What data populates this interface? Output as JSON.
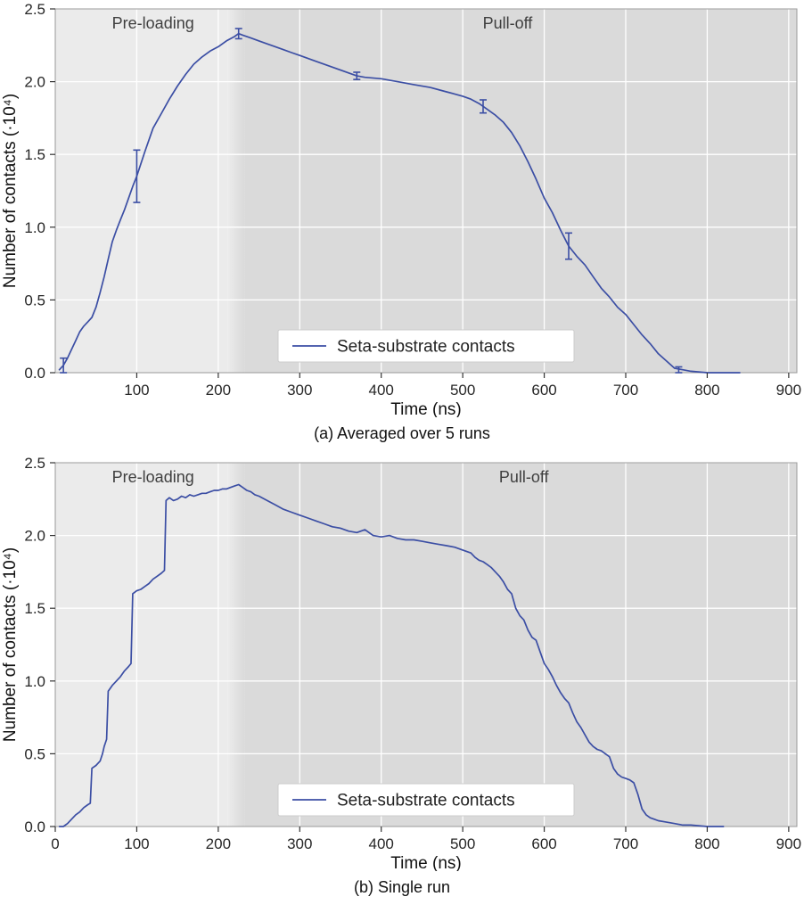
{
  "figure": {
    "line_color": "#3b4ea4",
    "preload_color": "#ebebeb",
    "pulloff_color": "#dadada",
    "grid_color": "#ffffff",
    "border_color": "#9a9a9a",
    "tick_color": "#333333",
    "legend_border": "#cccccc",
    "legend_bg": "#ffffff"
  },
  "chart_data": [
    {
      "type": "line",
      "caption": "(a) Averaged over 5 runs",
      "xlabel": "Time (ns)",
      "ylabel": "Number of contacts (·10⁴)",
      "xlim": [
        0,
        910
      ],
      "ylim": [
        0,
        2.5
      ],
      "xticks": [
        100,
        200,
        300,
        400,
        500,
        600,
        700,
        800,
        900
      ],
      "yticks": [
        0.0,
        0.5,
        1.0,
        1.5,
        2.0,
        2.5
      ],
      "grid": true,
      "legend_position": "lower center",
      "legend": [
        "Seta-substrate contacts"
      ],
      "regions": [
        {
          "label": "Pre-loading",
          "from": 0,
          "to": 222,
          "label_x": 120,
          "color": "#ebebeb"
        },
        {
          "label": "Pull-off",
          "from": 222,
          "to": 910,
          "label_x": 555,
          "color": "#dadada"
        }
      ],
      "series": [
        {
          "name": "Seta-substrate contacts",
          "x": [
            5,
            10,
            15,
            20,
            25,
            30,
            35,
            40,
            45,
            50,
            55,
            60,
            65,
            70,
            75,
            80,
            85,
            90,
            95,
            100,
            110,
            120,
            130,
            140,
            150,
            160,
            170,
            180,
            190,
            200,
            210,
            220,
            225,
            230,
            240,
            250,
            260,
            270,
            280,
            290,
            300,
            320,
            340,
            360,
            370,
            380,
            400,
            420,
            440,
            460,
            480,
            500,
            510,
            520,
            525,
            530,
            540,
            550,
            560,
            570,
            580,
            590,
            600,
            610,
            620,
            630,
            640,
            650,
            660,
            670,
            680,
            690,
            700,
            710,
            720,
            730,
            740,
            750,
            760,
            770,
            780,
            800,
            820,
            840
          ],
          "y": [
            0.02,
            0.05,
            0.1,
            0.16,
            0.22,
            0.28,
            0.32,
            0.35,
            0.38,
            0.45,
            0.55,
            0.66,
            0.78,
            0.9,
            0.98,
            1.05,
            1.12,
            1.2,
            1.28,
            1.35,
            1.52,
            1.68,
            1.78,
            1.88,
            1.97,
            2.05,
            2.12,
            2.17,
            2.21,
            2.24,
            2.28,
            2.31,
            2.33,
            2.32,
            2.3,
            2.28,
            2.26,
            2.24,
            2.22,
            2.2,
            2.18,
            2.14,
            2.1,
            2.06,
            2.04,
            2.03,
            2.02,
            2.0,
            1.98,
            1.96,
            1.93,
            1.9,
            1.88,
            1.85,
            1.83,
            1.81,
            1.77,
            1.72,
            1.65,
            1.56,
            1.45,
            1.33,
            1.2,
            1.1,
            0.98,
            0.87,
            0.8,
            0.74,
            0.66,
            0.58,
            0.52,
            0.45,
            0.4,
            0.33,
            0.26,
            0.2,
            0.13,
            0.08,
            0.03,
            0.02,
            0.01,
            0.0,
            0.0,
            0.0
          ]
        }
      ],
      "error_bars": [
        {
          "x": 10,
          "y": 0.05,
          "err": 0.05
        },
        {
          "x": 100,
          "y": 1.35,
          "err": 0.18
        },
        {
          "x": 225,
          "y": 2.33,
          "err": 0.035
        },
        {
          "x": 370,
          "y": 2.04,
          "err": 0.025
        },
        {
          "x": 525,
          "y": 1.83,
          "err": 0.045
        },
        {
          "x": 630,
          "y": 0.87,
          "err": 0.09
        },
        {
          "x": 765,
          "y": 0.02,
          "err": 0.02
        }
      ]
    },
    {
      "type": "line",
      "caption": "(b) Single run",
      "xlabel": "Time (ns)",
      "ylabel": "Number of contacts (·10⁴)",
      "xlim": [
        0,
        910
      ],
      "ylim": [
        0,
        2.5
      ],
      "xticks": [
        0,
        100,
        200,
        300,
        400,
        500,
        600,
        700,
        800,
        900
      ],
      "yticks": [
        0.0,
        0.5,
        1.0,
        1.5,
        2.0,
        2.5
      ],
      "grid": true,
      "legend_position": "lower center",
      "legend": [
        "Seta-substrate contacts"
      ],
      "regions": [
        {
          "label": "Pre-loading",
          "from": 0,
          "to": 222,
          "label_x": 120,
          "color": "#ebebeb"
        },
        {
          "label": "Pull-off",
          "from": 222,
          "to": 910,
          "label_x": 575,
          "color": "#dadada"
        }
      ],
      "series": [
        {
          "name": "Seta-substrate contacts",
          "x": [
            5,
            10,
            15,
            20,
            25,
            30,
            35,
            40,
            43,
            45,
            50,
            55,
            58,
            60,
            63,
            65,
            70,
            75,
            80,
            85,
            90,
            93,
            95,
            100,
            105,
            110,
            115,
            120,
            125,
            130,
            134,
            136,
            140,
            145,
            150,
            155,
            160,
            165,
            170,
            175,
            180,
            185,
            190,
            195,
            200,
            205,
            210,
            215,
            220,
            225,
            230,
            235,
            240,
            245,
            250,
            260,
            270,
            280,
            290,
            300,
            310,
            320,
            330,
            340,
            350,
            360,
            370,
            380,
            390,
            400,
            410,
            420,
            430,
            440,
            450,
            460,
            470,
            480,
            490,
            500,
            510,
            515,
            520,
            525,
            530,
            535,
            540,
            545,
            550,
            555,
            560,
            565,
            570,
            575,
            580,
            585,
            590,
            595,
            600,
            605,
            610,
            615,
            620,
            625,
            630,
            635,
            640,
            645,
            650,
            655,
            660,
            665,
            670,
            675,
            680,
            685,
            690,
            695,
            700,
            705,
            710,
            715,
            720,
            725,
            730,
            735,
            740,
            750,
            760,
            770,
            780,
            800,
            820
          ],
          "y": [
            0.0,
            0.0,
            0.02,
            0.05,
            0.08,
            0.1,
            0.13,
            0.15,
            0.16,
            0.4,
            0.42,
            0.45,
            0.5,
            0.55,
            0.6,
            0.93,
            0.97,
            1.0,
            1.03,
            1.07,
            1.1,
            1.12,
            1.6,
            1.62,
            1.63,
            1.65,
            1.67,
            1.7,
            1.72,
            1.74,
            1.76,
            2.24,
            2.26,
            2.24,
            2.25,
            2.27,
            2.26,
            2.28,
            2.27,
            2.28,
            2.29,
            2.29,
            2.3,
            2.31,
            2.31,
            2.32,
            2.32,
            2.33,
            2.34,
            2.35,
            2.33,
            2.31,
            2.3,
            2.28,
            2.27,
            2.24,
            2.21,
            2.18,
            2.16,
            2.14,
            2.12,
            2.1,
            2.08,
            2.06,
            2.05,
            2.03,
            2.02,
            2.04,
            2.0,
            1.99,
            2.0,
            1.98,
            1.97,
            1.97,
            1.96,
            1.95,
            1.94,
            1.93,
            1.92,
            1.9,
            1.88,
            1.85,
            1.83,
            1.82,
            1.8,
            1.78,
            1.75,
            1.72,
            1.68,
            1.63,
            1.6,
            1.5,
            1.45,
            1.42,
            1.35,
            1.3,
            1.28,
            1.2,
            1.12,
            1.08,
            1.03,
            0.97,
            0.92,
            0.88,
            0.85,
            0.78,
            0.72,
            0.68,
            0.63,
            0.58,
            0.55,
            0.53,
            0.52,
            0.5,
            0.48,
            0.4,
            0.36,
            0.34,
            0.33,
            0.32,
            0.3,
            0.22,
            0.12,
            0.08,
            0.06,
            0.05,
            0.04,
            0.03,
            0.02,
            0.01,
            0.01,
            0.0,
            0.0
          ]
        }
      ],
      "error_bars": []
    }
  ]
}
